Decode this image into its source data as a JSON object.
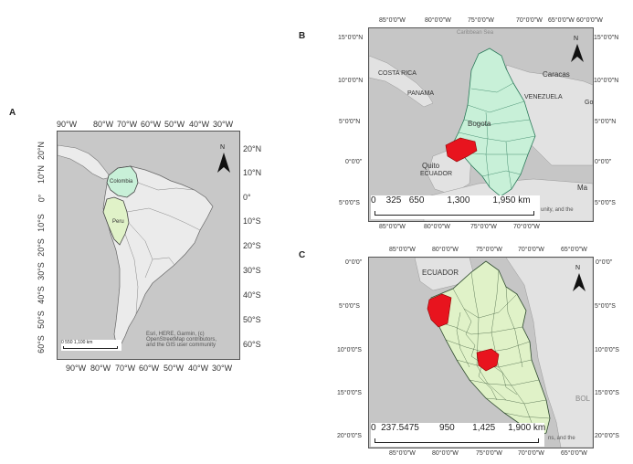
{
  "panels": {
    "a": {
      "letter": "A",
      "lon_ticks": [
        "90°W",
        "80°W",
        "70°W",
        "60°W",
        "50°W",
        "40°W",
        "30°W"
      ],
      "lat_left": [
        "20°N",
        "10°N",
        "0°",
        "10°S",
        "20°S",
        "30°S",
        "40°S",
        "50°S",
        "60°S"
      ],
      "lat_right": [
        "20°N",
        "10°N",
        "0°",
        "10°S",
        "20°S",
        "30°S",
        "40°S",
        "50°S",
        "60°S"
      ],
      "labels": {
        "colombia": "Colombia",
        "peru": "Peru"
      },
      "scale_bar": "0   550 1,100 km",
      "attribution": [
        "Esri, HERE, Garmin, (c)",
        "OpenStreetMap contributors,",
        "and the GIS user community"
      ],
      "north": "N"
    },
    "b": {
      "letter": "B",
      "lon_ticks": [
        "85°0'0\"W",
        "80°0'0\"W",
        "75°0'0\"W",
        "70°0'0\"W",
        "65°0'0\"W",
        "60°0'0\"W"
      ],
      "lat_left": [
        "15°0'0\"N",
        "10°0'0\"N",
        "5°0'0\"N",
        "0°0'0\"",
        "5°0'0\"S"
      ],
      "lat_right": [
        "15°0'0\"N",
        "10°0'0\"N",
        "5°0'0\"N",
        "0°0'0\"",
        "5°0'0\"S"
      ],
      "labels": {
        "sea": "Caribbean Sea",
        "costa_rica": "COSTA RICA",
        "panama": "PANAMA",
        "caracas": "Caracas",
        "venezuela": "VENEZUELA",
        "bogota": "Bogota",
        "quito": "Quito",
        "ecuador": "ECUADOR",
        "ma": "Ma",
        "go": "Go"
      },
      "scale_bar": "0    325   650         1,300         1,950 km",
      "attribution": "unity, and the",
      "north": "N"
    },
    "c": {
      "letter": "C",
      "lon_ticks": [
        "85°0'0\"W",
        "80°0'0\"W",
        "75°0'0\"W",
        "70°0'0\"W",
        "65°0'0\"W"
      ],
      "lat_left": [
        "0°0'0\"",
        "5°0'0\"S",
        "10°0'0\"S",
        "15°0'0\"S",
        "20°0'0\"S"
      ],
      "lat_right": [
        "0°0'0\"",
        "5°0'0\"S",
        "10°0'0\"S",
        "15°0'0\"S",
        "20°0'0\"S"
      ],
      "labels": {
        "ecuador": "ECUADOR",
        "bol": "BOL"
      },
      "scale_bar": "0  237.5475        950       1,425     1,900 km",
      "attribution": "ns, and the",
      "north": "N"
    }
  },
  "colors": {
    "land": "#ebebeb",
    "water": "#c6c6c6",
    "highlight_green": "#c8f0d8",
    "peru_green": "#e0f2c8",
    "red": "#e8141e"
  }
}
